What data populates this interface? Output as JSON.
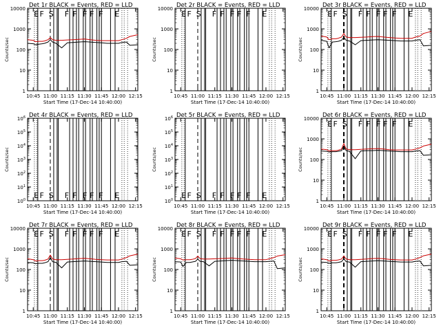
{
  "figure": {
    "background": "#ffffff",
    "event_color": "#000000",
    "lld_color": "#cc0000"
  },
  "chart_data": [
    {
      "type": "line",
      "title": "Det 1r BLACK = Events, RED = LLD",
      "xlabel": "Start Time (17-Dec-14 10:40:00)",
      "ylabel": "Counts/sec",
      "yscale": "log",
      "ylim": [
        1,
        10000
      ],
      "ytick_labels": [
        "1",
        "10",
        "100",
        "1000",
        "10000"
      ],
      "xlim": [
        "10:40",
        "12:17"
      ],
      "xtick_labels": [
        "10:45",
        "11:00",
        "11:15",
        "11:30",
        "11:45",
        "12:00",
        "12:15"
      ],
      "flag_text": [
        "E",
        "F",
        "S",
        "F",
        "F",
        "F",
        "F",
        "F",
        "E"
      ],
      "has_data": true,
      "series": [
        {
          "x": [
            "10:40",
            "10:45",
            "10:47",
            "10:50",
            "10:53",
            "10:55",
            "10:58",
            "11:00",
            "11:02",
            "11:05",
            "11:10",
            "11:15",
            "11:20",
            "11:25",
            "11:30",
            "11:35",
            "11:40",
            "11:45",
            "11:50",
            "11:55",
            "12:00",
            "12:03",
            "12:07",
            "12:10",
            "12:17"
          ],
          "values": [
            300,
            280,
            240,
            250,
            250,
            260,
            300,
            380,
            300,
            280,
            280,
            290,
            300,
            310,
            320,
            300,
            280,
            270,
            270,
            270,
            270,
            300,
            350,
            430,
            520
          ]
        },
        {
          "x": [
            "10:40",
            "10:45",
            "10:47",
            "10:50",
            "10:53",
            "10:55",
            "10:58",
            "11:00",
            "11:02",
            "11:05",
            "11:10",
            "11:15",
            "11:20",
            "11:25",
            "11:30",
            "11:35",
            "11:40",
            "11:45",
            "11:50",
            "11:55",
            "12:00",
            "12:03",
            "12:07",
            "12:10",
            "12:17"
          ],
          "values": [
            200,
            190,
            170,
            180,
            190,
            200,
            230,
            300,
            230,
            200,
            120,
            210,
            220,
            230,
            240,
            230,
            220,
            210,
            200,
            200,
            200,
            220,
            230,
            160,
            170
          ]
        }
      ]
    },
    {
      "type": "line",
      "title": "Det 2r BLACK = Events, RED = LLD",
      "xlabel": "Start Time (17-Dec-14 10:40:00)",
      "ylabel": "Counts/sec",
      "yscale": "log",
      "ylim": [
        1,
        10000
      ],
      "ytick_labels": [
        "1",
        "10",
        "100",
        "1000",
        "10000"
      ],
      "xlim": [
        "10:40",
        "12:17"
      ],
      "xtick_labels": [
        "10:45",
        "11:00",
        "11:15",
        "11:30",
        "11:45",
        "12:00",
        "12:15"
      ],
      "flag_text": [
        "E",
        "F",
        "S",
        "F",
        "F",
        "F",
        "F",
        "F",
        "E"
      ],
      "has_data": false,
      "series": []
    },
    {
      "type": "line",
      "title": "Det 3r BLACK = Events, RED = LLD",
      "xlabel": "Start Time (17-Dec-14 10:40:00)",
      "ylabel": "Counts/sec",
      "yscale": "log",
      "ylim": [
        1,
        10000
      ],
      "ytick_labels": [
        "1",
        "10",
        "100",
        "1000",
        "10000"
      ],
      "xlim": [
        "10:40",
        "12:17"
      ],
      "xtick_labels": [
        "10:45",
        "11:00",
        "11:15",
        "11:30",
        "11:45",
        "12:00",
        "12:15"
      ],
      "flag_text": [
        "E",
        "F",
        "S",
        "F",
        "F",
        "F",
        "F",
        "F",
        "E"
      ],
      "has_data": true,
      "series": [
        {
          "x": [
            "10:40",
            "10:45",
            "10:47",
            "10:50",
            "10:53",
            "10:55",
            "10:58",
            "11:00",
            "11:02",
            "11:05",
            "11:10",
            "11:15",
            "11:20",
            "11:25",
            "11:30",
            "11:35",
            "11:40",
            "11:45",
            "11:50",
            "11:55",
            "12:00",
            "12:03",
            "12:07",
            "12:10",
            "12:17"
          ],
          "values": [
            450,
            400,
            300,
            330,
            330,
            350,
            400,
            600,
            400,
            380,
            380,
            390,
            400,
            420,
            430,
            400,
            380,
            360,
            350,
            350,
            350,
            400,
            450,
            600,
            750
          ]
        },
        {
          "x": [
            "10:40",
            "10:45",
            "10:47",
            "10:50",
            "10:53",
            "10:55",
            "10:58",
            "11:00",
            "11:02",
            "11:05",
            "11:10",
            "11:15",
            "11:20",
            "11:25",
            "11:30",
            "11:35",
            "11:40",
            "11:45",
            "11:50",
            "11:55",
            "12:00",
            "12:03",
            "12:07",
            "12:10",
            "12:17"
          ],
          "values": [
            280,
            250,
            120,
            230,
            240,
            250,
            280,
            400,
            280,
            260,
            170,
            270,
            280,
            290,
            300,
            290,
            280,
            270,
            260,
            260,
            260,
            280,
            300,
            150,
            160
          ]
        }
      ]
    },
    {
      "type": "line",
      "title": "Det 4r BLACK = Events, RED = LLD",
      "xlabel": "Start Time (17-Dec-14 10:40:00)",
      "ylabel": "Counts/sec",
      "yscale": "log",
      "ylim": [
        1,
        1000000
      ],
      "ytick_labels": [
        "10^0",
        "10^1",
        "10^2",
        "10^3",
        "10^4",
        "10^5",
        "10^6"
      ],
      "xlim": [
        "10:40",
        "12:17"
      ],
      "xtick_labels": [
        "10:45",
        "11:00",
        "11:15",
        "11:30",
        "11:45",
        "12:00",
        "12:15"
      ],
      "flag_text": [
        "E",
        "F",
        "S",
        "F",
        "F",
        "F",
        "F",
        "F",
        "E"
      ],
      "has_data": false,
      "series": []
    },
    {
      "type": "line",
      "title": "Det 5r BLACK = Events, RED = LLD",
      "xlabel": "Start Time (17-Dec-14 10:40:00)",
      "ylabel": "Counts/sec",
      "yscale": "log",
      "ylim": [
        1,
        1000000
      ],
      "ytick_labels": [
        "10^0",
        "10^1",
        "10^2",
        "10^3",
        "10^4",
        "10^5",
        "10^6"
      ],
      "xlim": [
        "10:40",
        "12:17"
      ],
      "xtick_labels": [
        "10:45",
        "11:00",
        "11:15",
        "11:30",
        "11:45",
        "12:00",
        "12:15"
      ],
      "flag_text": [
        "E",
        "F",
        "S",
        "F",
        "F",
        "F",
        "F",
        "F",
        "E"
      ],
      "has_data": false,
      "series": []
    },
    {
      "type": "line",
      "title": "Det 6r BLACK = Events, RED = LLD",
      "xlabel": "Start Time (17-Dec-14 10:40:00)",
      "ylabel": "Counts/sec",
      "yscale": "log",
      "ylim": [
        1,
        10000
      ],
      "ytick_labels": [
        "1",
        "10",
        "100",
        "1000",
        "10000"
      ],
      "xlim": [
        "10:40",
        "12:17"
      ],
      "xtick_labels": [
        "10:45",
        "11:00",
        "11:15",
        "11:30",
        "11:45",
        "12:00",
        "12:15"
      ],
      "flag_text": [
        "E",
        "F",
        "S",
        "F",
        "F",
        "F",
        "F",
        "F",
        "E"
      ],
      "has_data": true,
      "series": [
        {
          "x": [
            "10:40",
            "10:45",
            "10:47",
            "10:50",
            "10:53",
            "10:55",
            "10:58",
            "11:00",
            "11:02",
            "11:05",
            "11:10",
            "11:15",
            "11:20",
            "11:25",
            "11:30",
            "11:35",
            "11:40",
            "11:45",
            "11:50",
            "11:55",
            "12:00",
            "12:03",
            "12:07",
            "12:10",
            "12:17"
          ],
          "values": [
            320,
            300,
            260,
            270,
            270,
            280,
            320,
            600,
            320,
            300,
            300,
            310,
            320,
            330,
            340,
            320,
            300,
            290,
            290,
            290,
            290,
            320,
            370,
            450,
            550
          ]
        },
        {
          "x": [
            "10:40",
            "10:45",
            "10:47",
            "10:50",
            "10:53",
            "10:55",
            "10:58",
            "11:00",
            "11:02",
            "11:05",
            "11:10",
            "11:15",
            "11:20",
            "11:25",
            "11:30",
            "11:35",
            "11:40",
            "11:45",
            "11:50",
            "11:55",
            "12:00",
            "12:03",
            "12:07",
            "12:10",
            "12:17"
          ],
          "values": [
            260,
            250,
            230,
            240,
            240,
            250,
            270,
            450,
            270,
            250,
            110,
            260,
            270,
            270,
            280,
            270,
            260,
            250,
            240,
            240,
            240,
            260,
            270,
            160,
            170
          ]
        }
      ]
    },
    {
      "type": "line",
      "title": "Det 7r BLACK = Events, RED = LLD",
      "xlabel": "Start Time (17-Dec-14 10:40:00)",
      "ylabel": "Counts/sec",
      "yscale": "log",
      "ylim": [
        1,
        10000
      ],
      "ytick_labels": [
        "1",
        "10",
        "100",
        "1000",
        "10000"
      ],
      "xlim": [
        "10:40",
        "12:17"
      ],
      "xtick_labels": [
        "10:45",
        "11:00",
        "11:15",
        "11:30",
        "11:45",
        "12:00",
        "12:15"
      ],
      "flag_text": [
        "E",
        "F",
        "S",
        "F",
        "F",
        "F",
        "F",
        "F",
        "E"
      ],
      "has_data": true,
      "series": [
        {
          "x": [
            "10:40",
            "10:45",
            "10:47",
            "10:50",
            "10:53",
            "10:55",
            "10:58",
            "11:00",
            "11:02",
            "11:05",
            "11:10",
            "11:15",
            "11:20",
            "11:25",
            "11:30",
            "11:35",
            "11:40",
            "11:45",
            "11:50",
            "11:55",
            "12:00",
            "12:03",
            "12:07",
            "12:10",
            "12:17"
          ],
          "values": [
            330,
            300,
            260,
            270,
            270,
            280,
            320,
            500,
            320,
            300,
            300,
            310,
            320,
            340,
            350,
            330,
            310,
            300,
            290,
            290,
            290,
            320,
            380,
            460,
            560
          ]
        },
        {
          "x": [
            "10:40",
            "10:45",
            "10:47",
            "10:50",
            "10:53",
            "10:55",
            "10:58",
            "11:00",
            "11:02",
            "11:05",
            "11:10",
            "11:15",
            "11:20",
            "11:25",
            "11:30",
            "11:35",
            "11:40",
            "11:45",
            "11:50",
            "11:55",
            "12:00",
            "12:03",
            "12:07",
            "12:10",
            "12:17"
          ],
          "values": [
            220,
            210,
            190,
            200,
            200,
            210,
            240,
            380,
            240,
            220,
            120,
            230,
            240,
            250,
            260,
            250,
            240,
            230,
            220,
            220,
            220,
            240,
            250,
            160,
            170
          ]
        }
      ]
    },
    {
      "type": "line",
      "title": "Det 8r BLACK = Events, RED = LLD",
      "xlabel": "Start Time (17-Dec-14 10:40:00)",
      "ylabel": "Counts/sec",
      "yscale": "log",
      "ylim": [
        1,
        10000
      ],
      "ytick_labels": [
        "1",
        "10",
        "100",
        "1000",
        "10000"
      ],
      "xlim": [
        "10:40",
        "12:17"
      ],
      "xtick_labels": [
        "10:45",
        "11:00",
        "11:15",
        "11:30",
        "11:45",
        "12:00",
        "12:15"
      ],
      "flag_text": [
        "E",
        "F",
        "S",
        "F",
        "F",
        "F",
        "F",
        "F",
        "E"
      ],
      "has_data": true,
      "series": [
        {
          "x": [
            "10:40",
            "10:45",
            "10:47",
            "10:50",
            "10:53",
            "10:55",
            "10:58",
            "11:00",
            "11:02",
            "11:05",
            "11:10",
            "11:15",
            "11:20",
            "11:25",
            "11:30",
            "11:35",
            "11:40",
            "11:45",
            "11:50",
            "11:55",
            "12:00",
            "12:03",
            "12:07",
            "12:10",
            "12:17"
          ],
          "values": [
            360,
            330,
            290,
            300,
            300,
            310,
            340,
            450,
            340,
            320,
            320,
            330,
            340,
            350,
            360,
            340,
            320,
            310,
            300,
            300,
            300,
            330,
            380,
            450,
            520
          ]
        },
        {
          "x": [
            "10:40",
            "10:45",
            "10:47",
            "10:50",
            "10:53",
            "10:55",
            "10:58",
            "11:00",
            "11:02",
            "11:05",
            "11:10",
            "11:15",
            "11:20",
            "11:25",
            "11:30",
            "11:35",
            "11:40",
            "11:45",
            "11:50",
            "11:55",
            "12:00",
            "12:03",
            "12:07",
            "12:10",
            "12:17"
          ],
          "values": [
            240,
            230,
            140,
            220,
            220,
            230,
            250,
            320,
            250,
            240,
            150,
            250,
            260,
            270,
            280,
            270,
            260,
            250,
            240,
            240,
            240,
            250,
            260,
            110,
            120
          ]
        }
      ]
    },
    {
      "type": "line",
      "title": "Det 9r BLACK = Events, RED = LLD",
      "xlabel": "Start Time (17-Dec-14 10:40:00)",
      "ylabel": "Counts/sec",
      "yscale": "log",
      "ylim": [
        1,
        10000
      ],
      "ytick_labels": [
        "1",
        "10",
        "100",
        "1000",
        "10000"
      ],
      "xlim": [
        "10:40",
        "12:17"
      ],
      "xtick_labels": [
        "10:45",
        "11:00",
        "11:15",
        "11:30",
        "11:45",
        "12:00",
        "12:15"
      ],
      "flag_text": [
        "E",
        "F",
        "S",
        "F",
        "F",
        "F",
        "F",
        "F",
        "E"
      ],
      "has_data": true,
      "series": [
        {
          "x": [
            "10:40",
            "10:45",
            "10:47",
            "10:50",
            "10:53",
            "10:55",
            "10:58",
            "11:00",
            "11:02",
            "11:05",
            "11:10",
            "11:15",
            "11:20",
            "11:25",
            "11:30",
            "11:35",
            "11:40",
            "11:45",
            "11:50",
            "11:55",
            "12:00",
            "12:03",
            "12:07",
            "12:10",
            "12:17"
          ],
          "values": [
            330,
            300,
            260,
            280,
            280,
            290,
            320,
            450,
            320,
            300,
            300,
            310,
            320,
            340,
            350,
            330,
            310,
            300,
            290,
            290,
            290,
            320,
            380,
            460,
            560
          ]
        },
        {
          "x": [
            "10:40",
            "10:45",
            "10:47",
            "10:50",
            "10:53",
            "10:55",
            "10:58",
            "11:00",
            "11:02",
            "11:05",
            "11:10",
            "11:15",
            "11:20",
            "11:25",
            "11:30",
            "11:35",
            "11:40",
            "11:45",
            "11:50",
            "11:55",
            "12:00",
            "12:03",
            "12:07",
            "12:10",
            "12:17"
          ],
          "values": [
            230,
            220,
            200,
            210,
            210,
            220,
            240,
            330,
            240,
            230,
            130,
            240,
            250,
            260,
            270,
            260,
            250,
            240,
            230,
            230,
            230,
            250,
            260,
            150,
            160
          ]
        }
      ]
    }
  ]
}
